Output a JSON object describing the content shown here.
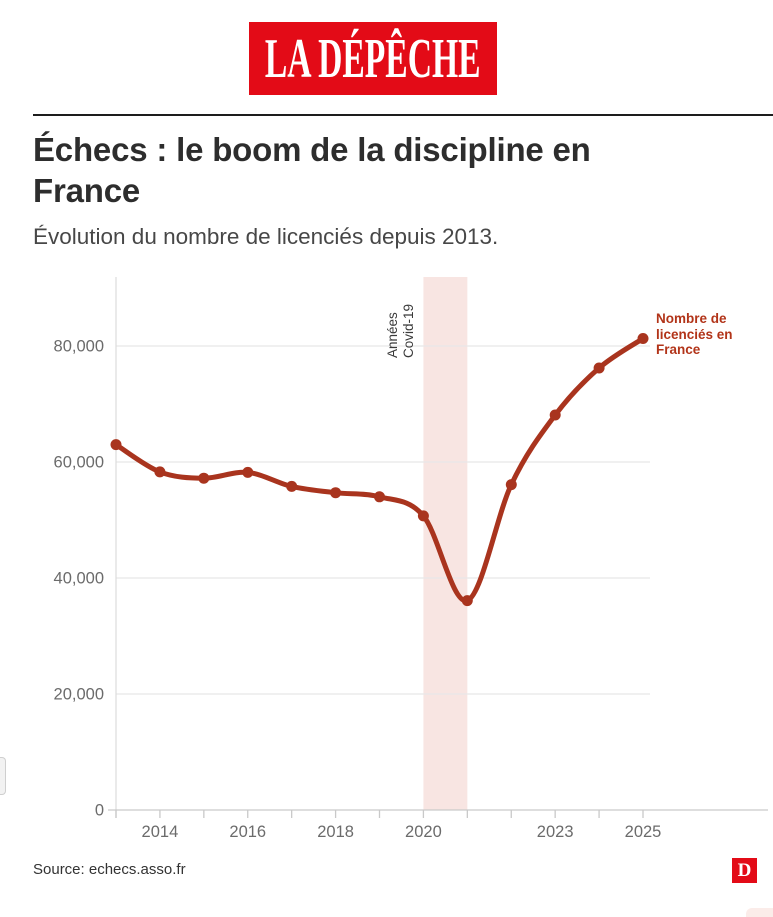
{
  "header": {
    "logo_text": "LA DÉPÊCHE"
  },
  "chart_data": {
    "type": "line",
    "title": "Échecs : le boom de la discipline en France",
    "subtitle": "Évolution du nombre de licenciés depuis 2013.",
    "x": [
      2013,
      2014,
      2015,
      2016,
      2017,
      2018,
      2019,
      2020,
      2021,
      2022,
      2023,
      2024,
      2025
    ],
    "values": [
      63000,
      58300,
      57200,
      58200,
      55800,
      54700,
      54000,
      50700,
      36100,
      56100,
      68100,
      76200,
      81300
    ],
    "series_label": "Nombre de licenciés en France",
    "legend_lines": [
      "Nombre de",
      "licenciés en",
      "France"
    ],
    "legend_position": "right",
    "annotation_lines": [
      "Années",
      "Covid-19"
    ],
    "covid_band": {
      "from": 2020,
      "to": 2021
    },
    "y_ticks": [
      {
        "value": 0,
        "label": "0"
      },
      {
        "value": 20000,
        "label": "20,000"
      },
      {
        "value": 40000,
        "label": "40,000"
      },
      {
        "value": 60000,
        "label": "60,000"
      },
      {
        "value": 80000,
        "label": "80,000"
      }
    ],
    "x_ticks": [
      2013,
      2014,
      2015,
      2016,
      2017,
      2018,
      2019,
      2020,
      2021,
      2022,
      2023,
      2024,
      2025
    ],
    "x_labels": [
      {
        "year": 2014,
        "label": "2014"
      },
      {
        "year": 2016,
        "label": "2016"
      },
      {
        "year": 2018,
        "label": "2018"
      },
      {
        "year": 2020,
        "label": "2020"
      },
      {
        "year": 2023,
        "label": "2023"
      },
      {
        "year": 2025,
        "label": "2025"
      }
    ],
    "ylim": [
      0,
      90000
    ],
    "grid": true
  },
  "colors": {
    "brand_red": "#e30b17",
    "line": "#a9341e",
    "legend_text": "#b23419",
    "covid_band": "#f8e5e2",
    "grid": "#e8e8e8",
    "axis": "#c9c9c9",
    "y_axis_line": "#dedede",
    "tick_label": "#6b6b6b",
    "title": "#2d2d2d",
    "subtitle": "#474747",
    "annotation": "#3a3a3a",
    "source": "#333333"
  },
  "footer": {
    "source": "Source: echecs.asso.fr",
    "logo_letter": "D"
  }
}
